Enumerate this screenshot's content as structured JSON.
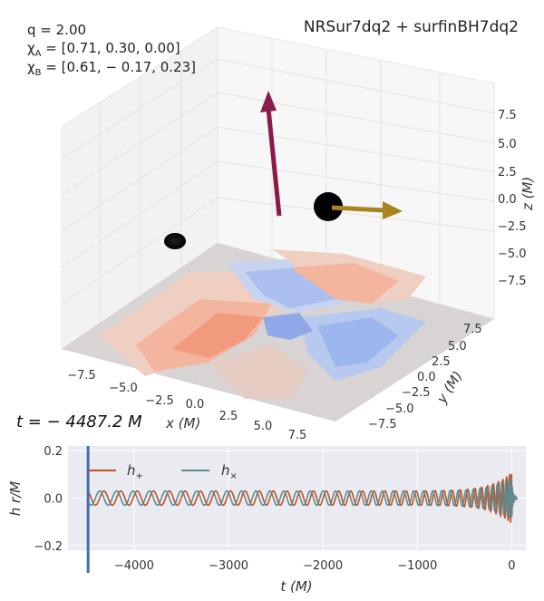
{
  "params": {
    "q": "q = 2.00",
    "chiA": "χ",
    "chiA_sub": "A",
    "chiA_val": " = [0.71, 0.30, 0.00]",
    "chiB": "χ",
    "chiB_sub": "B",
    "chiB_val": " = [0.61, − 0.17, 0.23]"
  },
  "title": "NRSur7dq2 + surfinBH7dq2",
  "time_label": "t = − 4487.2 M",
  "axis3d": {
    "x_label": "x (M)",
    "y_label": "y (M)",
    "z_label": "z (M)",
    "x_ticks": [
      "−7.5",
      "−5.0",
      "−2.5",
      "0.0",
      "2.5",
      "5.0",
      "7.5"
    ],
    "y_ticks": [
      "−7.5",
      "−5.0",
      "−2.5",
      "0.0",
      "2.5",
      "5.0",
      "7.5"
    ],
    "z_ticks": [
      "7.5",
      "5.0",
      "2.5",
      "0.0",
      "−2.5",
      "−5.0",
      "−7.5"
    ]
  },
  "colors": {
    "h_plus": "#c4511c",
    "h_cross": "#5d8b95",
    "time_marker": "#3f6fb5",
    "arrow_a": "#8b1a4a",
    "arrow_b": "#a8841e",
    "panel_bg": "#e9ebf1"
  },
  "chart_data": {
    "type": "line",
    "xlabel": "t (M)",
    "ylabel": "h r/M",
    "xlim": [
      -4700,
      150
    ],
    "ylim": [
      -0.22,
      0.22
    ],
    "x_ticks": [
      -4000,
      -3000,
      -2000,
      -1000,
      0
    ],
    "x_tick_labels": [
      "−4000",
      "−3000",
      "−2000",
      "−1000",
      "0"
    ],
    "y_ticks": [
      0.2,
      0.0,
      -0.2
    ],
    "y_tick_labels": [
      "0.2",
      "0.0",
      "−0.2"
    ],
    "current_time": -4487.2,
    "t_start": -4500,
    "t_merge": 0,
    "series": [
      {
        "name": "h₊",
        "label_main": "h",
        "label_sub": "+",
        "amplitude_start": 0.03,
        "amplitude_peak": 0.11
      },
      {
        "name": "h×",
        "label_main": "h",
        "label_sub": "×",
        "amplitude_start": 0.03,
        "amplitude_peak": 0.09
      }
    ]
  }
}
